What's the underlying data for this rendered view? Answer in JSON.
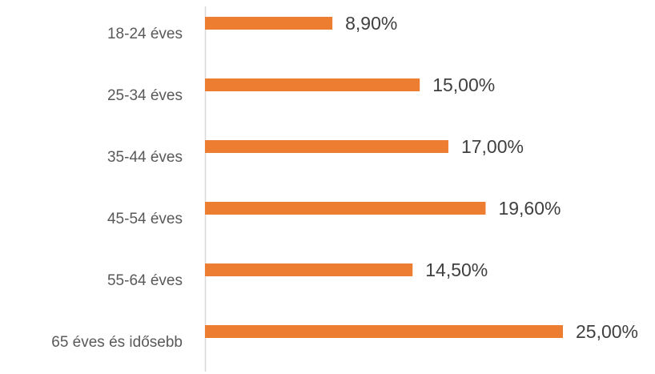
{
  "chart_data": {
    "type": "bar",
    "orientation": "horizontal",
    "categories": [
      "18-24 éves",
      "25-34 éves",
      "35-44 éves",
      "45-54 éves",
      "55-64 éves",
      "65 éves és idősebb"
    ],
    "values": [
      8.9,
      15.0,
      17.0,
      19.6,
      14.5,
      25.0
    ],
    "data_labels": [
      "8,90%",
      "15,00%",
      "17,00%",
      "19,60%",
      "14,50%",
      "25,00%"
    ],
    "value_unit": "%",
    "xlim": [
      0,
      25
    ],
    "grid": false,
    "legend": "none",
    "bar_color": "#ED7D31",
    "axis_color": "#D9D9D9",
    "label_color": "#595959"
  }
}
